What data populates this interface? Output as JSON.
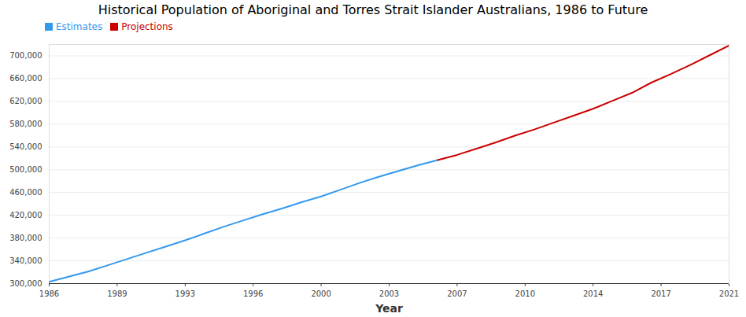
{
  "chart_data": {
    "type": "line",
    "title": "Historical Population of Aboriginal and Torres Strait Islander Australians, 1986 to Future",
    "x_label": "Year",
    "x": [
      1986,
      1987,
      1988,
      1989,
      1990,
      1991,
      1992,
      1993,
      1994,
      1995,
      1996,
      1997,
      1998,
      1999,
      2000,
      2001,
      2002,
      2003,
      2004,
      2005,
      2006,
      2007,
      2008,
      2009,
      2010,
      2011,
      2012,
      2013,
      2014,
      2015,
      2016,
      2017,
      2018,
      2019,
      2020,
      2021
    ],
    "series": [
      {
        "name": "Estimates",
        "color": "#3399ee",
        "values": [
          303000,
          312000,
          321000,
          332000,
          343000,
          354000,
          365000,
          376000,
          388000,
          400000,
          411000,
          422000,
          432000,
          443000,
          453000,
          465000,
          477000,
          488000,
          498000,
          508000,
          517000,
          null,
          null,
          null,
          null,
          null,
          null,
          null,
          null,
          null,
          null,
          null,
          null,
          null,
          null,
          null
        ]
      },
      {
        "name": "Projections",
        "color": "#cc0000",
        "values": [
          null,
          null,
          null,
          null,
          null,
          null,
          null,
          null,
          null,
          null,
          null,
          null,
          null,
          null,
          null,
          null,
          null,
          null,
          null,
          null,
          517000,
          526000,
          537000,
          548000,
          560000,
          571000,
          583000,
          595000,
          607000,
          621000,
          635000,
          653000,
          668000,
          684000,
          701000,
          718000
        ]
      }
    ],
    "xlim": [
      1986,
      2021
    ],
    "xticks": [
      1986,
      {
        "value": 1989.5,
        "label": "1989"
      },
      1993,
      {
        "value": 1996.5,
        "label": "1996"
      },
      2000,
      {
        "value": 2003.5,
        "label": "2003"
      },
      2007,
      {
        "value": 2010.5,
        "label": "2010"
      },
      2014,
      {
        "value": 2017.5,
        "label": "2017"
      },
      2021
    ],
    "ylim": [
      300000,
      720000
    ],
    "yticks": [
      {
        "value": 300000,
        "label": "300,000"
      },
      {
        "value": 340000,
        "label": "340,000"
      },
      {
        "value": 380000,
        "label": "380,000"
      },
      {
        "value": 420000,
        "label": "420,000"
      },
      {
        "value": 460000,
        "label": "460,000"
      },
      {
        "value": 500000,
        "label": "500,000"
      },
      {
        "value": 540000,
        "label": "540,000"
      },
      {
        "value": 580000,
        "label": "580,000"
      },
      {
        "value": 620000,
        "label": "620,000"
      },
      {
        "value": 660000,
        "label": "660,000"
      },
      {
        "value": 700000,
        "label": "700,000"
      }
    ],
    "grid": true,
    "legend": "top-left"
  }
}
